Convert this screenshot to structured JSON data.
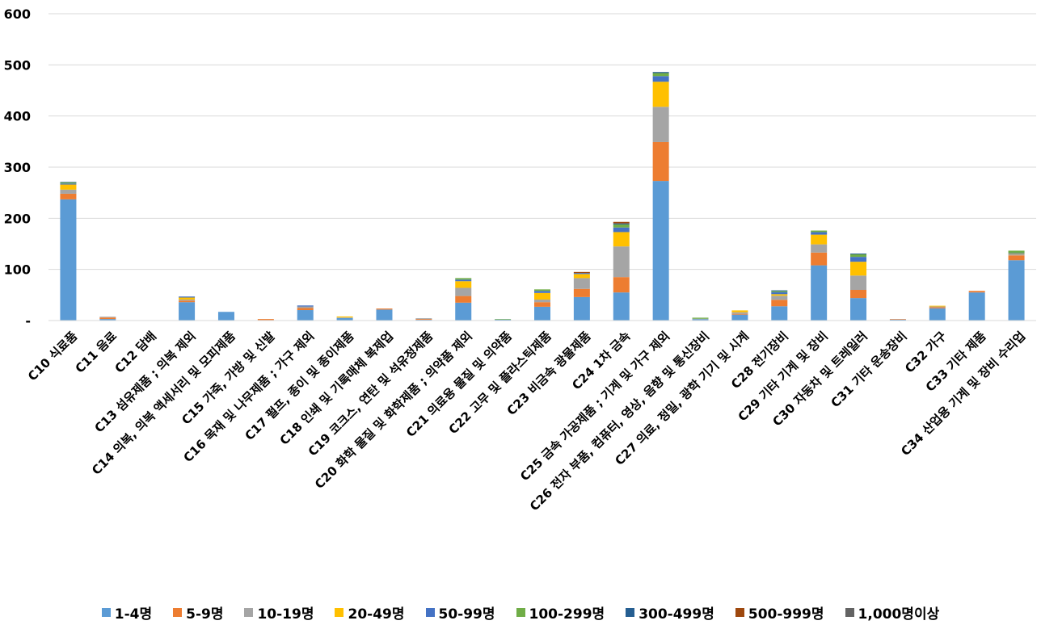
{
  "chart_data": {
    "type": "bar",
    "stacked": true,
    "title": "",
    "xlabel": "",
    "ylabel": "",
    "ylim": [
      0,
      600
    ],
    "yticks": [
      0,
      100,
      200,
      300,
      400,
      500,
      600
    ],
    "ytick_labels": [
      "-",
      "100",
      "200",
      "300",
      "400",
      "500",
      "600"
    ],
    "grid": true,
    "legend_position": "bottom",
    "categories": [
      "C10 식료품",
      "C11 음료",
      "C12 담배",
      "C13 섬유제품 ; 의복 제외",
      "C14 의복, 의복 액세서리 및 모피제품",
      "C15 가죽, 가방 및 신발",
      "C16 목재 및 나무제품 ; 가구 제외",
      "C17 펄프, 종이 및 종이제품",
      "C18 인쇄 및 기록매체 복제업",
      "C19 코크스, 연탄 및 석유정제품",
      "C20 화학 물질 및 화학제품 ; 의약품 제외",
      "C21 의료용 물질 및 의약품",
      "C22 고무 및 플라스틱제품",
      "C23 비금속 광물제품",
      "C24 1차 금속",
      "C25 금속 가공제품 ; 기계 및 가구 제외",
      "C26 전자 부품, 컴퓨터, 영상, 음향 및 통신장비",
      "C27 의료, 정밀, 광학 기기 및 시계",
      "C28 전기장비",
      "C29 기타 기계 및 장비",
      "C30 자동차 및 트레일러",
      "C31 기타 운송장비",
      "C32 가구",
      "C33 기타 제품",
      "C34 산업용 기계 및 장비 수리업"
    ],
    "series": [
      {
        "name": "1-4명",
        "color": "#5B9BD5",
        "values": [
          237,
          3,
          0,
          36,
          17,
          1,
          20.5,
          5,
          21.5,
          1.5,
          35,
          2,
          27,
          46,
          55,
          273,
          2.6,
          11.6,
          28,
          108,
          44,
          2,
          24,
          55,
          118
        ]
      },
      {
        "name": "5-9명",
        "color": "#ED7D31",
        "values": [
          11,
          3,
          0,
          3,
          0,
          2,
          4,
          0,
          2,
          1.5,
          13,
          0,
          9,
          16,
          30,
          76,
          0,
          1.6,
          12.6,
          25,
          16,
          1,
          2,
          3,
          9.5
        ]
      },
      {
        "name": "10-19명",
        "color": "#A5A5A5",
        "values": [
          8,
          1.5,
          0,
          2,
          0,
          0,
          3,
          1,
          0,
          1.5,
          16,
          0,
          5,
          21,
          60,
          69,
          1,
          3,
          8,
          16,
          28,
          0,
          1.5,
          0,
          2
        ]
      },
      {
        "name": "20-49명",
        "color": "#FFC000",
        "values": [
          10,
          0,
          0,
          4,
          0,
          0,
          0,
          2,
          0,
          0,
          13,
          0,
          13,
          8,
          28,
          49,
          0,
          3.7,
          3,
          19,
          27,
          0,
          1.5,
          0,
          1
        ]
      },
      {
        "name": "50-99명",
        "color": "#4472C4",
        "values": [
          2,
          0,
          0,
          2,
          0,
          0,
          2,
          0,
          0,
          0,
          3,
          0,
          4,
          2,
          9,
          11,
          0,
          0,
          4,
          5,
          9.5,
          0,
          0,
          0,
          1.5
        ]
      },
      {
        "name": "100-299명",
        "color": "#70AD47",
        "values": [
          2,
          0,
          0,
          0,
          0,
          0,
          0,
          0,
          0,
          0,
          3,
          1,
          3,
          0,
          6,
          6,
          2,
          0,
          2,
          3,
          5,
          0,
          0,
          0,
          4.7
        ]
      },
      {
        "name": "300-499명",
        "color": "#255E91",
        "values": [
          1,
          0,
          0,
          0,
          0,
          0,
          0,
          0,
          0,
          0,
          0,
          0,
          0,
          0,
          2,
          2,
          0,
          0,
          1.5,
          0,
          1.5,
          0,
          0,
          0,
          0
        ]
      },
      {
        "name": "500-999명",
        "color": "#9E480E",
        "values": [
          0,
          0,
          0,
          0,
          0,
          0,
          0,
          0,
          0,
          0,
          0,
          0,
          0,
          2,
          3,
          0,
          0,
          0,
          0,
          0,
          0,
          0,
          0,
          0,
          0
        ]
      },
      {
        "name": "1,000명이상",
        "color": "#636363",
        "values": [
          0,
          0,
          0,
          0,
          0,
          0,
          0,
          0,
          0,
          0,
          0,
          0,
          0,
          0,
          0,
          0,
          0,
          0,
          0,
          0,
          0,
          0,
          0,
          0,
          0
        ]
      }
    ]
  }
}
